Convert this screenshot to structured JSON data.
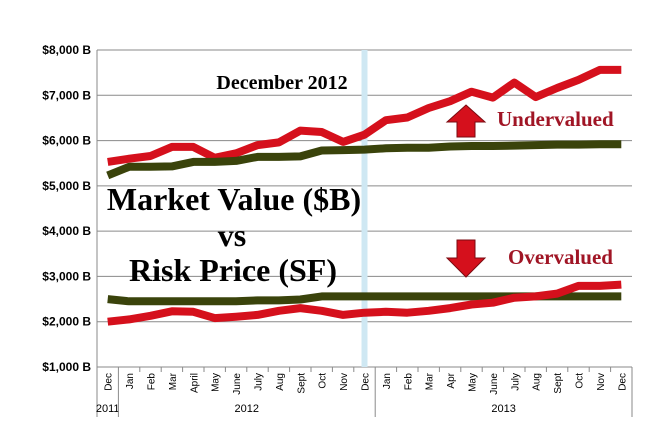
{
  "chart_data": {
    "type": "line",
    "title_lines": [
      "Market Value ($B)",
      "vs",
      "Risk Price (SF)"
    ],
    "annotation_date": "December 2012",
    "label_undervalued": "Undervalued",
    "label_overvalued": "Overvalued",
    "ylim": [
      1000,
      8000
    ],
    "y_ticks": [
      {
        "value": 1000,
        "label": "$1,000 B"
      },
      {
        "value": 2000,
        "label": "$2,000 B"
      },
      {
        "value": 3000,
        "label": "$3,000 B"
      },
      {
        "value": 4000,
        "label": "$4,000 B"
      },
      {
        "value": 5000,
        "label": "$5,000 B"
      },
      {
        "value": 6000,
        "label": "$6,000 B"
      },
      {
        "value": 7000,
        "label": "$7,000 B"
      },
      {
        "value": 8000,
        "label": "$8,000 B"
      }
    ],
    "categories": [
      "Dec",
      "Jan",
      "Feb",
      "Mar",
      "April",
      "May",
      "June",
      "July",
      "Aug",
      "Sept",
      "Oct",
      "Nov",
      "Dec",
      "Jan",
      "Feb",
      "Mar",
      "Apr",
      "May",
      "June",
      "July",
      "Aug",
      "Sept",
      "Oct",
      "Nov",
      "Dec"
    ],
    "years": [
      {
        "label": "2011",
        "start": 0,
        "end": 0
      },
      {
        "label": "2012",
        "start": 1,
        "end": 12
      },
      {
        "label": "2013",
        "start": 13,
        "end": 24
      }
    ],
    "highlight_index": 12,
    "series": [
      {
        "name": "Market Value Upper",
        "color": "#d5101c",
        "values": [
          5530,
          5600,
          5660,
          5860,
          5860,
          5620,
          5720,
          5900,
          5960,
          6220,
          6190,
          5970,
          6130,
          6450,
          6510,
          6720,
          6870,
          7080,
          6950,
          7280,
          6960,
          7160,
          7340,
          7560,
          7560
        ]
      },
      {
        "name": "Risk Price Upper",
        "color": "#3a430b",
        "values": [
          5230,
          5420,
          5420,
          5430,
          5530,
          5530,
          5550,
          5640,
          5640,
          5650,
          5780,
          5790,
          5800,
          5830,
          5840,
          5840,
          5870,
          5880,
          5880,
          5890,
          5900,
          5910,
          5910,
          5920,
          5920
        ]
      },
      {
        "name": "Risk Price Lower",
        "color": "#3a430b",
        "values": [
          2500,
          2450,
          2450,
          2450,
          2450,
          2450,
          2450,
          2470,
          2470,
          2490,
          2560,
          2560,
          2560,
          2560,
          2560,
          2560,
          2560,
          2560,
          2560,
          2560,
          2560,
          2560,
          2560,
          2560,
          2560
        ]
      },
      {
        "name": "Market Value Lower",
        "color": "#d5101c",
        "values": [
          2000,
          2050,
          2130,
          2230,
          2220,
          2080,
          2110,
          2150,
          2240,
          2300,
          2240,
          2150,
          2200,
          2220,
          2200,
          2240,
          2300,
          2380,
          2420,
          2530,
          2560,
          2620,
          2790,
          2790,
          2820
        ]
      }
    ],
    "accent_colors": {
      "red": "#d5101c",
      "olive": "#3a430b",
      "highlight": "#cfe8f3",
      "undervalued_text": "#a01525",
      "overvalued_text": "#a01525"
    }
  }
}
